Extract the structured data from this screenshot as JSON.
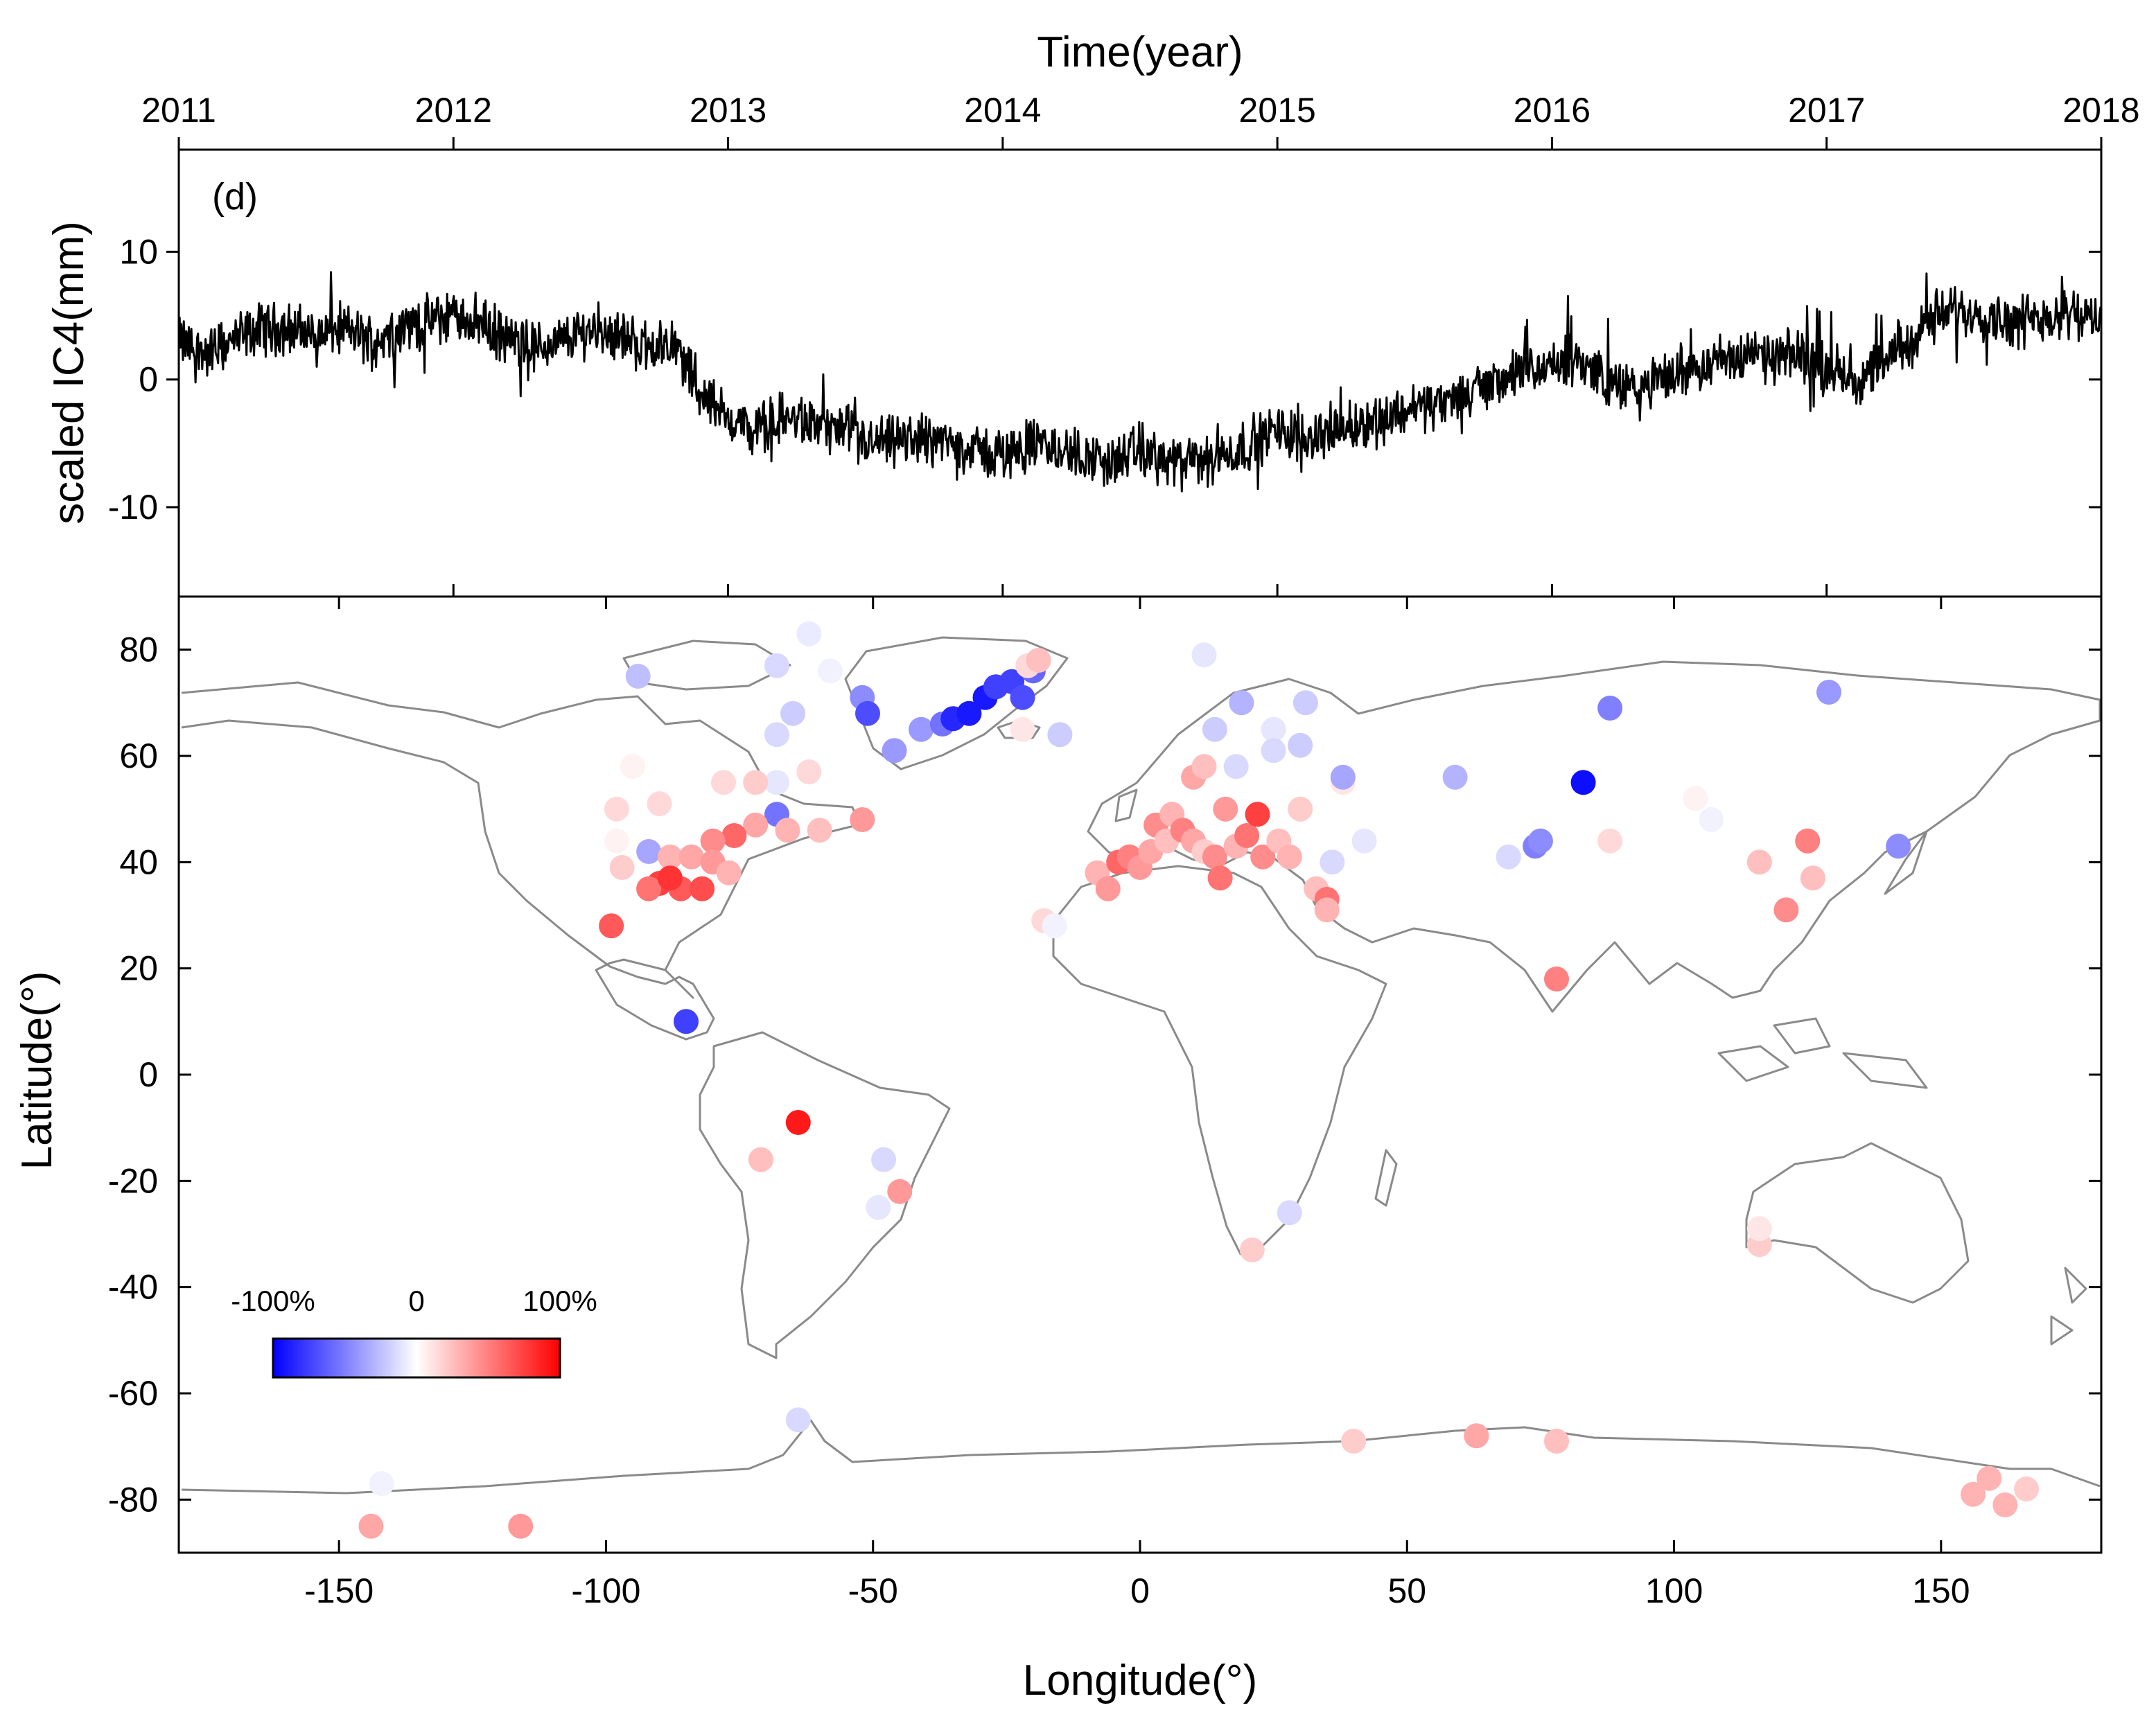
{
  "chart_data": [
    {
      "type": "line",
      "panel_label": "(d)",
      "xlabel": "Time(year)",
      "ylabel": "scaled IC4(mm)",
      "x_ticks": [
        "2011",
        "2012",
        "2013",
        "2014",
        "2015",
        "2016",
        "2017",
        "2018"
      ],
      "y_ticks": [
        "10",
        "0",
        "-10"
      ],
      "xlim": [
        2011,
        2018
      ],
      "ylim": [
        -17,
        18
      ],
      "series": [
        {
          "name": "scaled IC4",
          "x": [
            2011.0,
            2011.1,
            2011.2,
            2011.3,
            2011.4,
            2011.5,
            2011.6,
            2011.7,
            2011.8,
            2011.9,
            2012.0,
            2012.1,
            2012.2,
            2012.3,
            2012.4,
            2012.5,
            2012.6,
            2012.7,
            2012.8,
            2012.85,
            2012.9,
            2013.0,
            2013.1,
            2013.2,
            2013.3,
            2013.4,
            2013.5,
            2013.6,
            2013.7,
            2013.8,
            2013.9,
            2014.0,
            2014.1,
            2014.2,
            2014.3,
            2014.4,
            2014.5,
            2014.6,
            2014.7,
            2014.8,
            2014.9,
            2015.0,
            2015.1,
            2015.2,
            2015.3,
            2015.4,
            2015.5,
            2015.6,
            2015.7,
            2015.8,
            2015.9,
            2016.0,
            2016.1,
            2016.2,
            2016.3,
            2016.4,
            2016.5,
            2016.6,
            2016.7,
            2016.8,
            2016.9,
            2017.0,
            2017.1,
            2017.2,
            2017.3,
            2017.4,
            2017.5,
            2017.6,
            2017.7,
            2017.8,
            2017.9,
            2018.0
          ],
          "values": [
            3,
            2,
            3,
            4,
            4,
            3.5,
            4,
            3,
            4,
            4.5,
            5,
            4.5,
            3,
            2.5,
            3,
            4,
            3.5,
            2.5,
            3,
            1,
            -1,
            -3,
            -4,
            -3,
            -3.5,
            -4,
            -5,
            -5,
            -4.5,
            -5,
            -5.5,
            -6,
            -5,
            -5.5,
            -6,
            -6.5,
            -5.5,
            -6.5,
            -6.5,
            -6,
            -5,
            -4,
            -4.5,
            -4,
            -3.5,
            -3,
            -2,
            -2,
            -1,
            0,
            0.5,
            1,
            1.5,
            0,
            -1,
            0,
            1,
            1.5,
            2,
            1.5,
            2,
            1,
            0,
            1,
            3,
            5,
            5.5,
            5,
            4.5,
            5,
            5.5,
            4
          ]
        }
      ]
    },
    {
      "type": "scatter",
      "xlabel": "Longitude(°)",
      "ylabel": "Latitude(°)",
      "xlim": [
        -180,
        180
      ],
      "ylim": [
        -90,
        90
      ],
      "x_ticks": [
        "-150",
        "-100",
        "-50",
        "0",
        "50",
        "100",
        "150"
      ],
      "y_ticks": [
        "80",
        "60",
        "40",
        "20",
        "0",
        "-20",
        "-40",
        "-60",
        "-80"
      ],
      "colorbar": {
        "labels": [
          "-100%",
          "0",
          "100%"
        ],
        "range": [
          -100,
          100
        ],
        "colors": [
          "#0000ff",
          "#ffffff",
          "#ff0000"
        ]
      },
      "points": [
        {
          "lon": -94,
          "lat": 75,
          "value": -25
        },
        {
          "lon": -68,
          "lat": 77,
          "value": -15
        },
        {
          "lon": -62,
          "lat": 83,
          "value": -8
        },
        {
          "lon": -58,
          "lat": 76,
          "value": -5
        },
        {
          "lon": -52,
          "lat": 71,
          "value": -45
        },
        {
          "lon": -51,
          "lat": 68,
          "value": -70
        },
        {
          "lon": -46,
          "lat": 61,
          "value": -40
        },
        {
          "lon": -41,
          "lat": 65,
          "value": -40
        },
        {
          "lon": -37,
          "lat": 66,
          "value": -55
        },
        {
          "lon": -35,
          "lat": 67,
          "value": -85
        },
        {
          "lon": -32,
          "lat": 68,
          "value": -90
        },
        {
          "lon": -29,
          "lat": 71,
          "value": -90
        },
        {
          "lon": -27,
          "lat": 73,
          "value": -75
        },
        {
          "lon": -24,
          "lat": 74,
          "value": -75
        },
        {
          "lon": -22,
          "lat": 71,
          "value": -70
        },
        {
          "lon": -20,
          "lat": 76,
          "value": -60
        },
        {
          "lon": -21,
          "lat": 77,
          "value": 15
        },
        {
          "lon": -19,
          "lat": 78,
          "value": 25
        },
        {
          "lon": -22,
          "lat": 65,
          "value": 10
        },
        {
          "lon": -15,
          "lat": 64,
          "value": -20
        },
        {
          "lon": -65,
          "lat": 68,
          "value": -20
        },
        {
          "lon": -68,
          "lat": 64,
          "value": -15
        },
        {
          "lon": -62,
          "lat": 57,
          "value": 15
        },
        {
          "lon": -68,
          "lat": 55,
          "value": -10
        },
        {
          "lon": -72,
          "lat": 55,
          "value": 20
        },
        {
          "lon": -68,
          "lat": 49,
          "value": -55
        },
        {
          "lon": -72,
          "lat": 47,
          "value": 35
        },
        {
          "lon": -76,
          "lat": 45,
          "value": 60
        },
        {
          "lon": -80,
          "lat": 44,
          "value": 45
        },
        {
          "lon": -66,
          "lat": 46,
          "value": 30
        },
        {
          "lon": -60,
          "lat": 46,
          "value": 25
        },
        {
          "lon": -52,
          "lat": 48,
          "value": 40
        },
        {
          "lon": -95,
          "lat": 58,
          "value": 5
        },
        {
          "lon": -98,
          "lat": 50,
          "value": 15
        },
        {
          "lon": -90,
          "lat": 51,
          "value": 15
        },
        {
          "lon": -98,
          "lat": 44,
          "value": 5
        },
        {
          "lon": -92,
          "lat": 42,
          "value": -35
        },
        {
          "lon": -97,
          "lat": 39,
          "value": 20
        },
        {
          "lon": -88,
          "lat": 41,
          "value": 30
        },
        {
          "lon": -84,
          "lat": 41,
          "value": 35
        },
        {
          "lon": -80,
          "lat": 40,
          "value": 40
        },
        {
          "lon": -77,
          "lat": 38,
          "value": 30
        },
        {
          "lon": -90,
          "lat": 36,
          "value": 75
        },
        {
          "lon": -92,
          "lat": 35,
          "value": 55
        },
        {
          "lon": -86,
          "lat": 35,
          "value": 65
        },
        {
          "lon": -82,
          "lat": 35,
          "value": 70
        },
        {
          "lon": -88,
          "lat": 37,
          "value": 80
        },
        {
          "lon": -78,
          "lat": 55,
          "value": 15
        },
        {
          "lon": -99,
          "lat": 28,
          "value": 65
        },
        {
          "lon": -85,
          "lat": 10,
          "value": -75
        },
        {
          "lon": -64,
          "lat": -9,
          "value": 90
        },
        {
          "lon": -71,
          "lat": -16,
          "value": 25
        },
        {
          "lon": -48,
          "lat": -16,
          "value": -15
        },
        {
          "lon": -45,
          "lat": -22,
          "value": 40
        },
        {
          "lon": -49,
          "lat": -25,
          "value": -10
        },
        {
          "lon": -18,
          "lat": 29,
          "value": 15
        },
        {
          "lon": -16,
          "lat": 28,
          "value": -5
        },
        {
          "lon": -8,
          "lat": 38,
          "value": 30
        },
        {
          "lon": -6,
          "lat": 35,
          "value": 40
        },
        {
          "lon": -4,
          "lat": 40,
          "value": 60
        },
        {
          "lon": -2,
          "lat": 41,
          "value": 50
        },
        {
          "lon": 0,
          "lat": 39,
          "value": 40
        },
        {
          "lon": 2,
          "lat": 42,
          "value": 35
        },
        {
          "lon": 3,
          "lat": 47,
          "value": 45
        },
        {
          "lon": 5,
          "lat": 44,
          "value": 25
        },
        {
          "lon": 6,
          "lat": 49,
          "value": 30
        },
        {
          "lon": 8,
          "lat": 46,
          "value": 50
        },
        {
          "lon": 10,
          "lat": 44,
          "value": 35
        },
        {
          "lon": 12,
          "lat": 42,
          "value": 20
        },
        {
          "lon": 14,
          "lat": 41,
          "value": 45
        },
        {
          "lon": 15,
          "lat": 37,
          "value": 55
        },
        {
          "lon": 16,
          "lat": 50,
          "value": 40
        },
        {
          "lon": 18,
          "lat": 43,
          "value": 30
        },
        {
          "lon": 20,
          "lat": 45,
          "value": 55
        },
        {
          "lon": 22,
          "lat": 49,
          "value": 75
        },
        {
          "lon": 23,
          "lat": 41,
          "value": 45
        },
        {
          "lon": 26,
          "lat": 44,
          "value": 25
        },
        {
          "lon": 28,
          "lat": 41,
          "value": 30
        },
        {
          "lon": 30,
          "lat": 50,
          "value": 20
        },
        {
          "lon": 33,
          "lat": 35,
          "value": 25
        },
        {
          "lon": 35,
          "lat": 33,
          "value": 55
        },
        {
          "lon": 35,
          "lat": 31,
          "value": 30
        },
        {
          "lon": 36,
          "lat": 40,
          "value": -15
        },
        {
          "lon": 38,
          "lat": 55,
          "value": 10
        },
        {
          "lon": 10,
          "lat": 56,
          "value": 35
        },
        {
          "lon": 12,
          "lat": 58,
          "value": 25
        },
        {
          "lon": 18,
          "lat": 58,
          "value": -15
        },
        {
          "lon": 14,
          "lat": 65,
          "value": -20
        },
        {
          "lon": 19,
          "lat": 70,
          "value": -30
        },
        {
          "lon": 25,
          "lat": 65,
          "value": -10
        },
        {
          "lon": 31,
          "lat": 70,
          "value": -20
        },
        {
          "lon": 25,
          "lat": 61,
          "value": -15
        },
        {
          "lon": 30,
          "lat": 62,
          "value": -20
        },
        {
          "lon": 38,
          "lat": 56,
          "value": -35
        },
        {
          "lon": 12,
          "lat": 79,
          "value": -10
        },
        {
          "lon": 42,
          "lat": 44,
          "value": -10
        },
        {
          "lon": 59,
          "lat": 56,
          "value": -30
        },
        {
          "lon": 69,
          "lat": 41,
          "value": -15
        },
        {
          "lon": 74,
          "lat": 43,
          "value": -50
        },
        {
          "lon": 75,
          "lat": 44,
          "value": -45
        },
        {
          "lon": 83,
          "lat": 55,
          "value": -95
        },
        {
          "lon": 88,
          "lat": 69,
          "value": -50
        },
        {
          "lon": 88,
          "lat": 44,
          "value": 15
        },
        {
          "lon": 78,
          "lat": 18,
          "value": 50
        },
        {
          "lon": 104,
          "lat": 52,
          "value": 5
        },
        {
          "lon": 107,
          "lat": 48,
          "value": -5
        },
        {
          "lon": 116,
          "lat": 40,
          "value": 25
        },
        {
          "lon": 121,
          "lat": 31,
          "value": 45
        },
        {
          "lon": 126,
          "lat": 37,
          "value": 25
        },
        {
          "lon": 125,
          "lat": 44,
          "value": 50
        },
        {
          "lon": 129,
          "lat": 72,
          "value": -40
        },
        {
          "lon": 142,
          "lat": 43,
          "value": -45
        },
        {
          "lon": 116,
          "lat": -32,
          "value": 20
        },
        {
          "lon": 116,
          "lat": -29,
          "value": 10
        },
        {
          "lon": 28,
          "lat": -26,
          "value": -15
        },
        {
          "lon": 21,
          "lat": -33,
          "value": 20
        },
        {
          "lon": -64,
          "lat": -65,
          "value": -15
        },
        {
          "lon": 40,
          "lat": -69,
          "value": 20
        },
        {
          "lon": 63,
          "lat": -68,
          "value": 35
        },
        {
          "lon": 78,
          "lat": -69,
          "value": 25
        },
        {
          "lon": 156,
          "lat": -79,
          "value": 30
        },
        {
          "lon": 159,
          "lat": -76,
          "value": 30
        },
        {
          "lon": 162,
          "lat": -81,
          "value": 30
        },
        {
          "lon": 166,
          "lat": -78,
          "value": 20
        },
        {
          "lon": -142,
          "lat": -77,
          "value": -5
        },
        {
          "lon": -144,
          "lat": -85,
          "value": 35
        },
        {
          "lon": -116,
          "lat": -85,
          "value": 40
        }
      ]
    }
  ]
}
